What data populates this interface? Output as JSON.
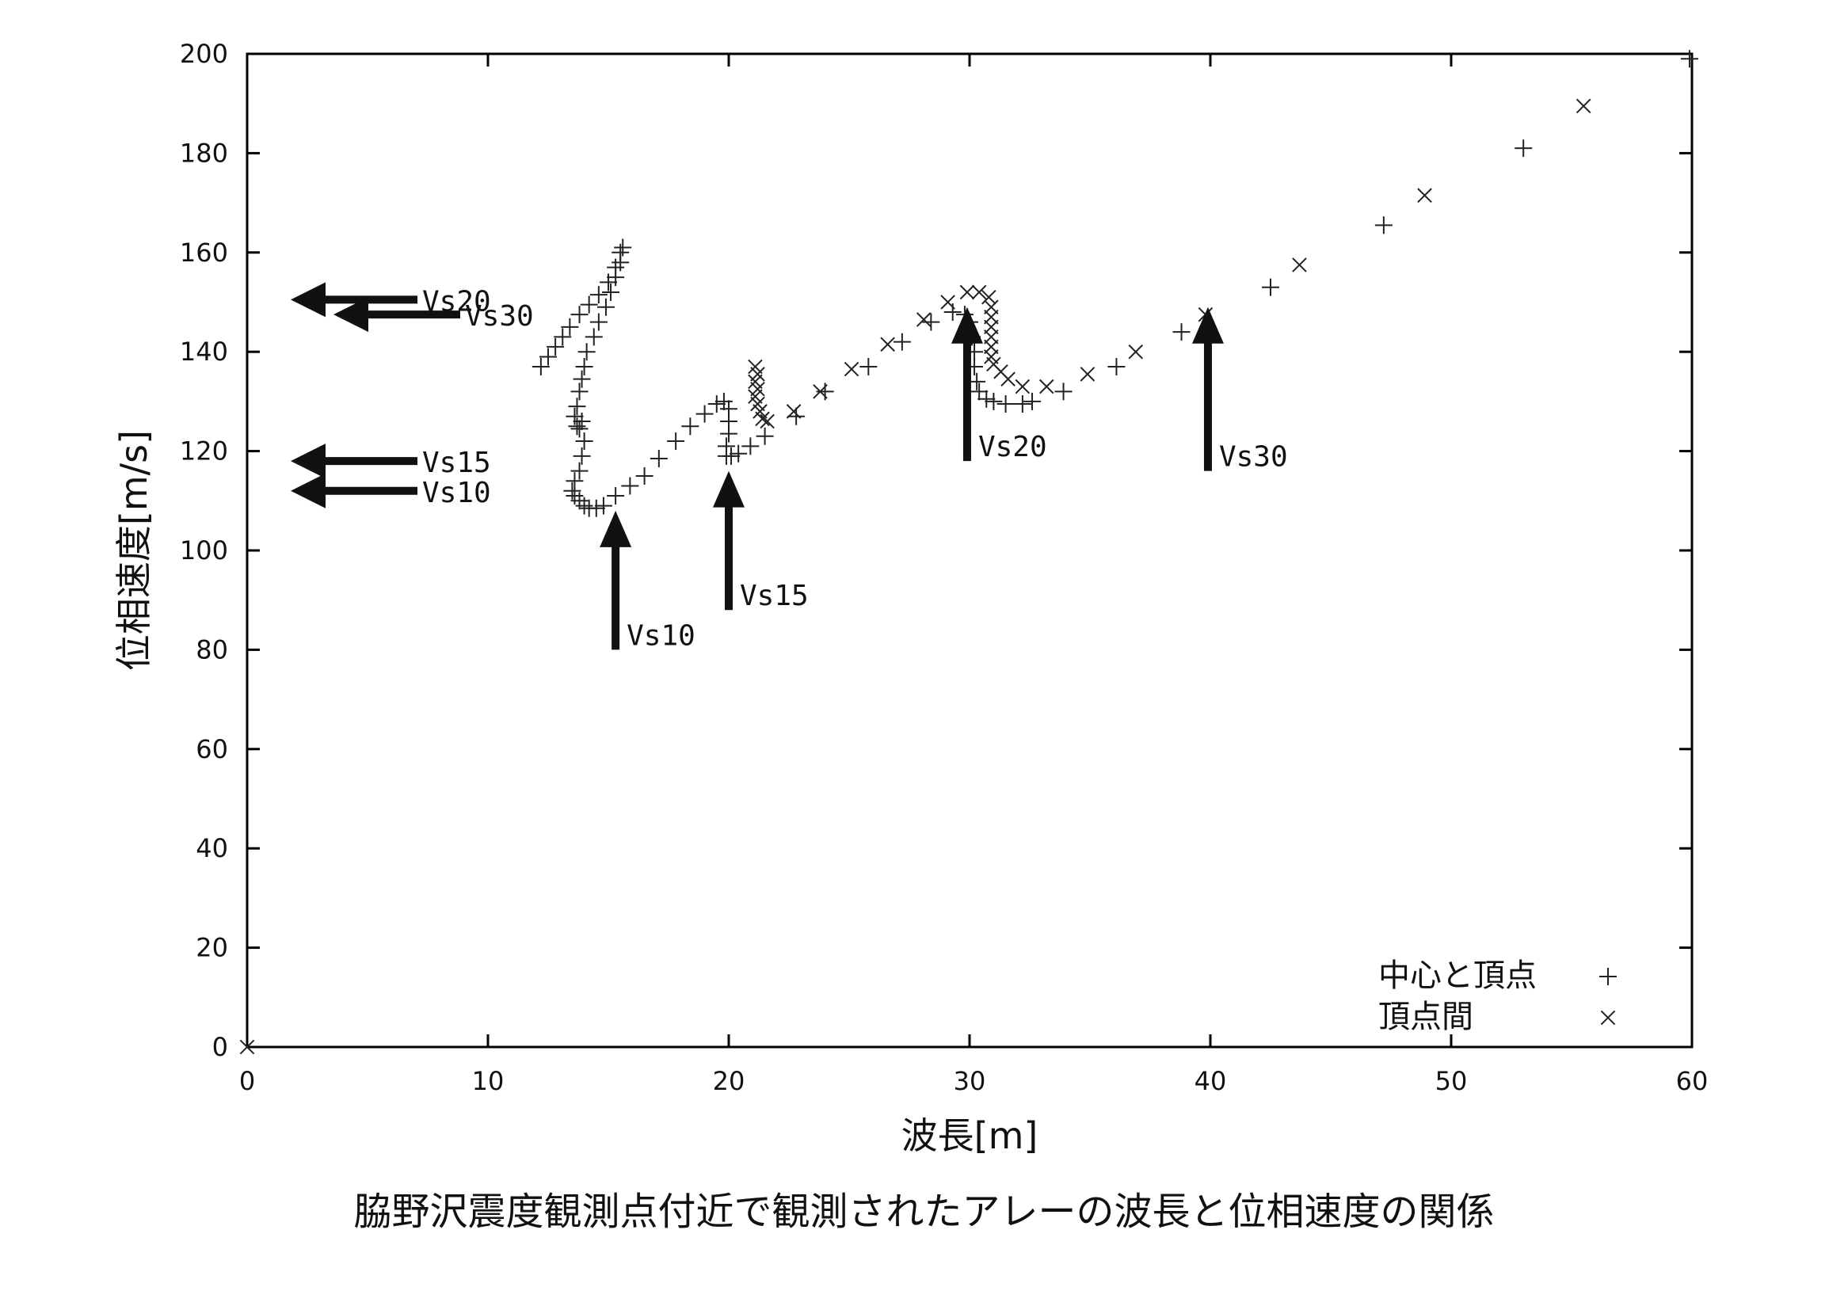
{
  "caption": "脇野沢震度観測点付近で観測されたアレーの波長と位相速度の関係",
  "chart_data": {
    "type": "scatter",
    "xlabel": "波長[m]",
    "ylabel": "位相速度[m/s]",
    "xlim": [
      0,
      60
    ],
    "ylim": [
      0,
      200
    ],
    "xticks": [
      0,
      10,
      20,
      30,
      40,
      50,
      60
    ],
    "yticks": [
      0,
      20,
      40,
      60,
      80,
      100,
      120,
      140,
      160,
      180,
      200
    ],
    "xtick_labels": [
      "0",
      "10",
      "20",
      "30",
      "40",
      "50",
      "60"
    ],
    "ytick_labels": [
      "0",
      "20",
      "40",
      "60",
      "80",
      "100",
      "120",
      "140",
      "160",
      "180",
      "200"
    ],
    "grid": false,
    "legend_position": "bottom-right",
    "series": [
      {
        "name": "中心と頂点",
        "marker": "+",
        "points": [
          [
            12.2,
            137
          ],
          [
            12.5,
            139
          ],
          [
            12.8,
            141
          ],
          [
            13.1,
            143
          ],
          [
            13.4,
            145
          ],
          [
            13.8,
            147.5
          ],
          [
            14.2,
            149.5
          ],
          [
            14.6,
            151.5
          ],
          [
            15.0,
            154
          ],
          [
            15.3,
            157
          ],
          [
            15.5,
            160
          ],
          [
            15.6,
            161
          ],
          [
            15.5,
            158
          ],
          [
            15.3,
            155
          ],
          [
            15.1,
            152
          ],
          [
            14.9,
            149
          ],
          [
            14.6,
            146
          ],
          [
            14.4,
            143
          ],
          [
            14.1,
            140
          ],
          [
            14.0,
            137
          ],
          [
            13.9,
            134.5
          ],
          [
            13.8,
            132
          ],
          [
            13.7,
            129
          ],
          [
            13.6,
            127
          ],
          [
            13.7,
            125
          ],
          [
            13.8,
            124.5
          ],
          [
            13.9,
            126
          ],
          [
            14.0,
            122
          ],
          [
            13.9,
            119
          ],
          [
            13.8,
            116
          ],
          [
            13.6,
            114
          ],
          [
            13.5,
            112
          ],
          [
            13.6,
            111
          ],
          [
            13.8,
            110
          ],
          [
            14.0,
            109
          ],
          [
            14.2,
            108.5
          ],
          [
            14.5,
            108.5
          ],
          [
            14.8,
            109
          ],
          [
            15.3,
            111
          ],
          [
            15.9,
            113
          ],
          [
            16.5,
            115
          ],
          [
            17.1,
            118.5
          ],
          [
            17.8,
            122
          ],
          [
            18.4,
            125
          ],
          [
            19.0,
            127.5
          ],
          [
            19.5,
            129.5
          ],
          [
            19.8,
            130
          ],
          [
            20.0,
            128.5
          ],
          [
            20.0,
            126
          ],
          [
            20.0,
            123.5
          ],
          [
            19.9,
            121
          ],
          [
            19.9,
            119
          ],
          [
            20.1,
            119
          ],
          [
            20.4,
            119.5
          ],
          [
            20.9,
            121
          ],
          [
            21.5,
            123
          ],
          [
            22.8,
            127
          ],
          [
            24.0,
            132
          ],
          [
            25.8,
            137
          ],
          [
            27.2,
            142
          ],
          [
            28.4,
            146
          ],
          [
            29.3,
            148
          ],
          [
            29.8,
            147.5
          ],
          [
            30.0,
            146
          ],
          [
            30.1,
            143
          ],
          [
            30.2,
            140
          ],
          [
            30.2,
            137
          ],
          [
            30.3,
            134
          ],
          [
            30.4,
            132
          ],
          [
            30.7,
            130.5
          ],
          [
            31.0,
            130
          ],
          [
            31.5,
            129.5
          ],
          [
            32.2,
            129.5
          ],
          [
            32.6,
            130
          ],
          [
            33.9,
            132
          ],
          [
            36.1,
            137
          ],
          [
            38.8,
            144
          ],
          [
            42.5,
            153
          ],
          [
            47.2,
            165.5
          ],
          [
            53.0,
            181
          ],
          [
            59.9,
            199
          ]
        ]
      },
      {
        "name": "頂点間",
        "marker": "x",
        "points": [
          [
            0,
            0
          ],
          [
            21.1,
            137
          ],
          [
            21.2,
            135.5
          ],
          [
            21.1,
            134
          ],
          [
            21.2,
            132.5
          ],
          [
            21.1,
            131
          ],
          [
            21.2,
            129.5
          ],
          [
            21.3,
            128
          ],
          [
            21.4,
            126.5
          ],
          [
            21.6,
            126
          ],
          [
            22.7,
            128
          ],
          [
            23.8,
            132
          ],
          [
            25.1,
            136.5
          ],
          [
            26.6,
            141.5
          ],
          [
            28.1,
            146.5
          ],
          [
            29.1,
            150
          ],
          [
            29.9,
            152
          ],
          [
            30.4,
            152
          ],
          [
            30.8,
            151
          ],
          [
            30.9,
            149
          ],
          [
            30.9,
            147
          ],
          [
            30.9,
            145
          ],
          [
            30.9,
            143
          ],
          [
            30.9,
            141
          ],
          [
            30.9,
            139
          ],
          [
            31.0,
            137.5
          ],
          [
            31.3,
            136
          ],
          [
            31.6,
            134.5
          ],
          [
            32.2,
            133
          ],
          [
            33.2,
            133
          ],
          [
            34.9,
            135.5
          ],
          [
            36.9,
            140
          ],
          [
            39.8,
            147.5
          ],
          [
            43.7,
            157.5
          ],
          [
            48.9,
            171.5
          ],
          [
            55.5,
            189.5
          ]
        ]
      }
    ],
    "annotations": [
      {
        "label": "Vs20",
        "direction": "left",
        "value": 150.5
      },
      {
        "label": "Vs30",
        "direction": "left",
        "value": 147.5
      },
      {
        "label": "Vs15",
        "direction": "left",
        "value": 118
      },
      {
        "label": "Vs10",
        "direction": "left",
        "value": 112
      },
      {
        "label": "Vs10",
        "direction": "up",
        "value": 15.3
      },
      {
        "label": "Vs15",
        "direction": "up",
        "value": 20.0
      },
      {
        "label": "Vs20",
        "direction": "up",
        "value": 29.9
      },
      {
        "label": "Vs30",
        "direction": "up",
        "value": 39.9
      }
    ]
  }
}
